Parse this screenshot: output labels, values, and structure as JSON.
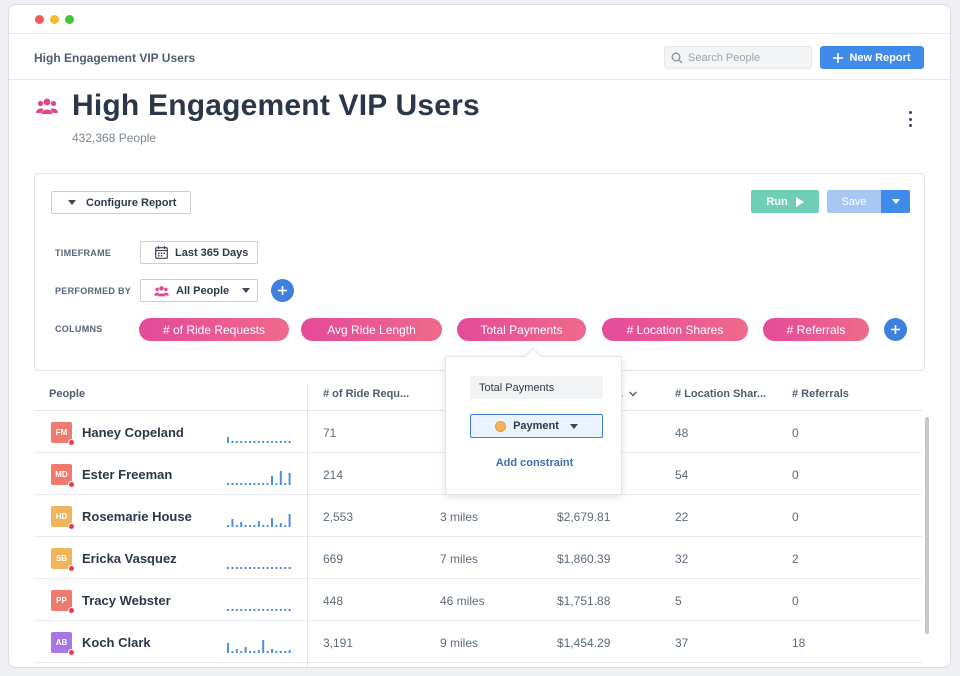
{
  "header": {
    "breadcrumb": "High Engagement VIP Users",
    "search_placeholder": "Search People",
    "new_report_label": "New Report"
  },
  "page": {
    "title": "High Engagement VIP Users",
    "subtitle": "432,368 People"
  },
  "config": {
    "configure_label": "Configure Report",
    "run_label": "Run",
    "save_label": "Save",
    "timeframe_label": "TIMEFRAME",
    "timeframe_value": "Last 365 Days",
    "performed_label": "PERFORMED BY",
    "performed_value": "All People",
    "columns_label": "COLUMNS",
    "columns": [
      "# of Ride Requests",
      "Avg Ride Length",
      "Total Payments",
      "# Location Shares",
      "# Referrals"
    ]
  },
  "popover": {
    "name_value": "Total Payments",
    "event_label": "Payment",
    "add_constraint": "Add constraint"
  },
  "table": {
    "headers": [
      "People",
      "# of Ride Requ...",
      "...",
      "# Location Shar...",
      "# Referrals"
    ],
    "rows": [
      {
        "initials": "FM",
        "color": "#ef7b6e",
        "name": "Haney Copeland",
        "rides": "71",
        "length": "",
        "payments": "",
        "shares": "48",
        "referrals": "0"
      },
      {
        "initials": "MD",
        "color": "#ef7b6e",
        "name": "Ester Freeman",
        "rides": "214",
        "length": "",
        "payments": "",
        "shares": "54",
        "referrals": "0"
      },
      {
        "initials": "HD",
        "color": "#f2b45a",
        "name": "Rosemarie House",
        "rides": "2,553",
        "length": "3 miles",
        "payments": "$2,679.81",
        "shares": "22",
        "referrals": "0"
      },
      {
        "initials": "SB",
        "color": "#f2b45a",
        "name": "Ericka Vasquez",
        "rides": "669",
        "length": "7 miles",
        "payments": "$1,860.39",
        "shares": "32",
        "referrals": "2"
      },
      {
        "initials": "PP",
        "color": "#ef7b6e",
        "name": "Tracy Webster",
        "rides": "448",
        "length": "46 miles",
        "payments": "$1,751.88",
        "shares": "5",
        "referrals": "0"
      },
      {
        "initials": "AB",
        "color": "#a877e3",
        "name": "Koch Clark",
        "rides": "3,191",
        "length": "9 miles",
        "payments": "$1,454.29",
        "shares": "37",
        "referrals": "18"
      }
    ]
  },
  "colors": {
    "accent": "#3e8bea",
    "run": "#6fcfb4",
    "pill": "#e44a9a"
  },
  "icons": [
    "search-icon",
    "plus-icon",
    "users-icon",
    "kebab-icon",
    "calendar-icon",
    "play-icon",
    "chevron-down-icon",
    "coin-icon"
  ]
}
